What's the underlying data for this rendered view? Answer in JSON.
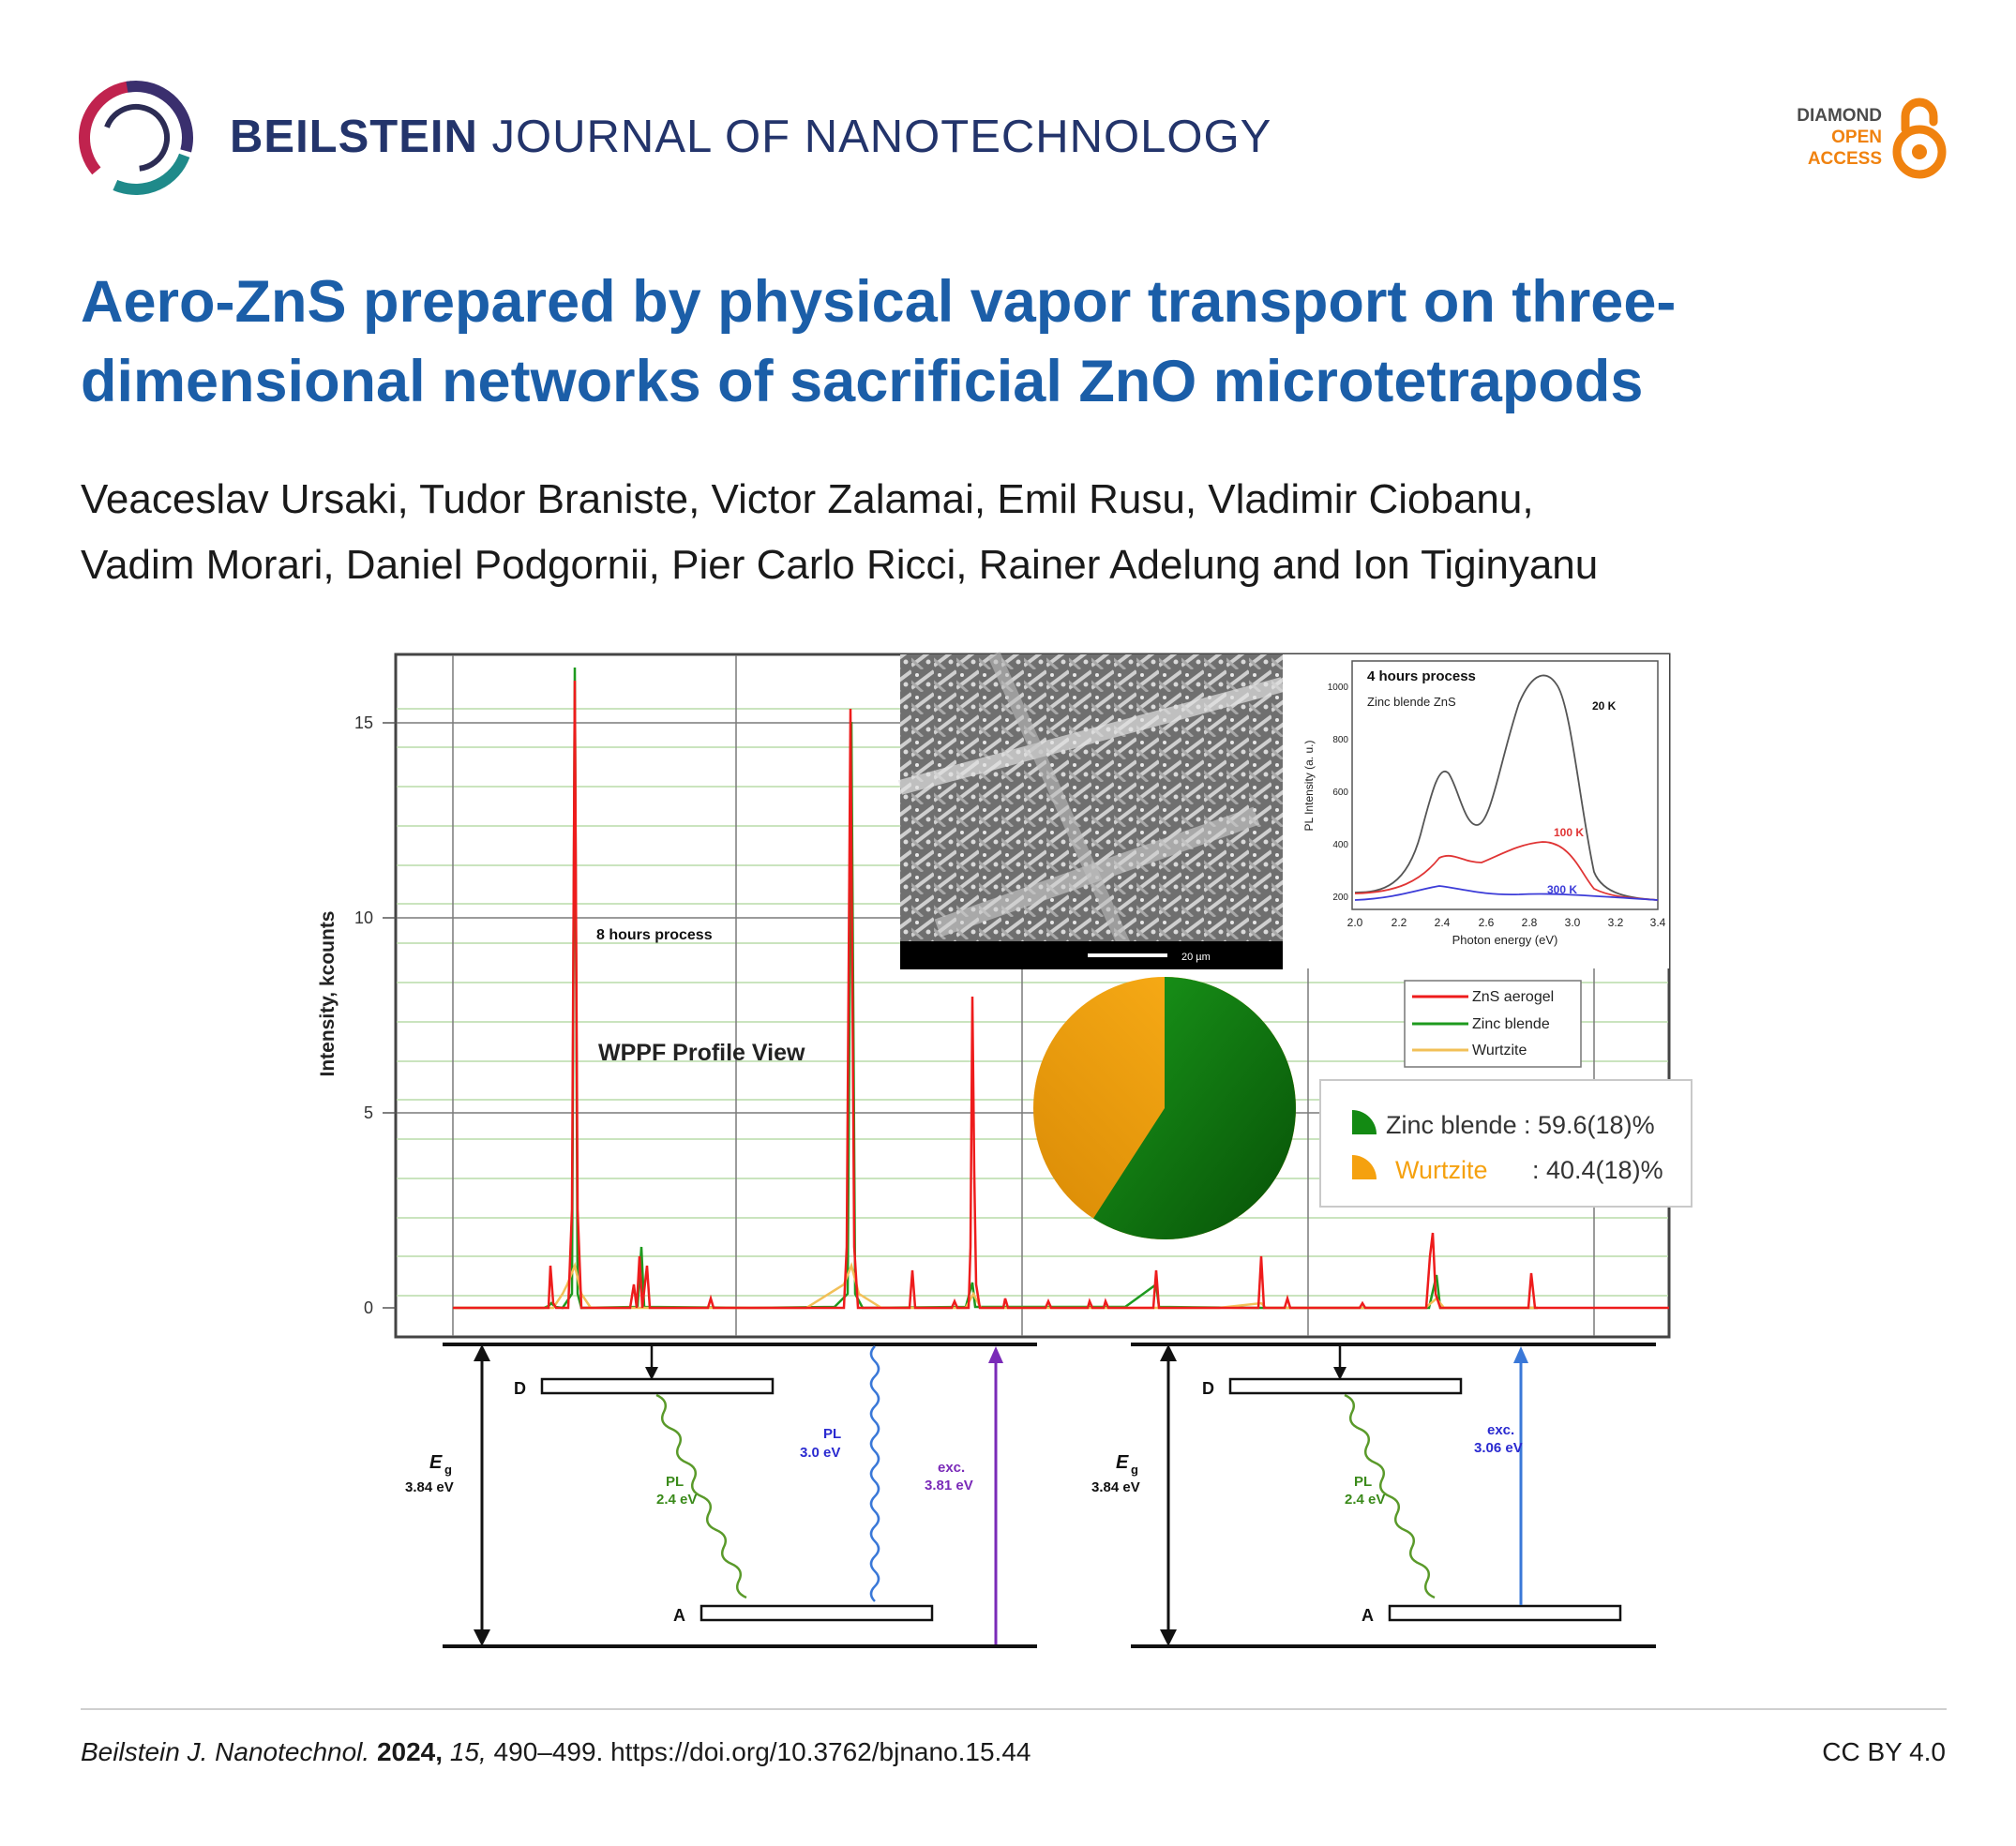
{
  "header": {
    "journal_bold": "BEILSTEIN",
    "journal_rest": "JOURNAL OF NANOTECHNOLOGY",
    "oa_line1": "DIAMOND",
    "oa_line2": "OPEN",
    "oa_line3": "ACCESS"
  },
  "article": {
    "title": "Aero-ZnS prepared by physical vapor transport on three-dimensional networks of sacrificial ZnO microtetrapods",
    "authors_line1": "Veaceslav Ursaki, Tudor Braniste, Victor Zalamai, Emil Rusu, Vladimir Ciobanu,",
    "authors_line2": "Vadim Morari, Daniel Podgornii, Pier Carlo Ricci, Rainer Adelung and Ion Tiginyanu"
  },
  "graphical_abstract": {
    "xrd": {
      "ylabel": "Intensity, kcounts",
      "yticks": [
        "0",
        "5",
        "10",
        "15"
      ],
      "label_process": "8 hours process",
      "label_wppf": "WPPF Profile View"
    },
    "sem": {
      "scale_label": "20 µm"
    },
    "pl": {
      "title": "4 hours process",
      "subtitle": "Zinc blende ZnS",
      "ylabel": "PL Intensity (a. u.)",
      "xlabel": "Photon energy (eV)",
      "xticks": [
        "2.0",
        "2.2",
        "2.4",
        "2.6",
        "2.8",
        "3.0",
        "3.2",
        "3.4"
      ],
      "yticks": [
        "200",
        "400",
        "600",
        "800",
        "1000"
      ],
      "curves": [
        "20 K",
        "100 K",
        "300 K"
      ]
    },
    "legend": [
      "ZnS aerogel",
      "Zinc blende",
      "Wurtzite"
    ],
    "pie": {
      "zinc_blende_label": "Zinc blende",
      "zinc_blende_value": ": 59.6(18)%",
      "wurtzite_label": "Wurtzite",
      "wurtzite_value": ": 40.4(18)%"
    },
    "energy_left": {
      "D": "D",
      "A": "A",
      "Eg": "E",
      "Eg_sub": "g",
      "Eg_value": "3.84 eV",
      "pl1_label": "PL",
      "pl1_value": "2.4 eV",
      "pl2_label": "PL",
      "pl2_value": "3.0 eV",
      "exc_label": "exc.",
      "exc_value": "3.81 eV"
    },
    "energy_right": {
      "D": "D",
      "A": "A",
      "Eg": "E",
      "Eg_sub": "g",
      "Eg_value": "3.84 eV",
      "pl_label": "PL",
      "pl_value": "2.4 eV",
      "exc_label": "exc.",
      "exc_value": "3.06 eV"
    }
  },
  "footer": {
    "journal": "Beilstein J. Nanotechnol.",
    "year": "2024,",
    "volume": "15,",
    "pages_doi": "490–499. https://doi.org/10.3762/bjnano.15.44",
    "license": "CC BY 4.0"
  },
  "colors": {
    "journal_blue": "#23346b",
    "title_blue": "#1b5ea8",
    "oa_orange": "#f0820f",
    "zinc_blende_green": "#138a13",
    "wurtzite_orange": "#f5a10f",
    "aerogel_red": "#f01c1c"
  }
}
